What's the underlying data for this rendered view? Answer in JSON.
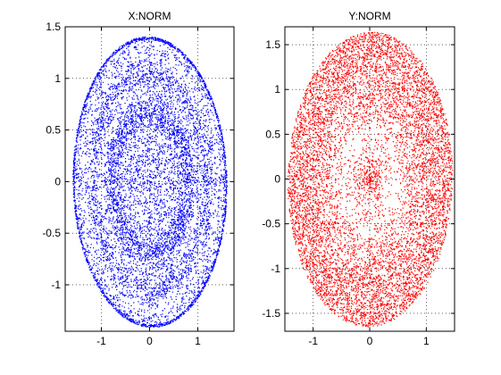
{
  "chart_data": [
    {
      "type": "scatter",
      "title": "X:NORM",
      "xlim": [
        -1.75,
        1.75
      ],
      "ylim": [
        -1.45,
        1.5
      ],
      "xticks": [
        -1,
        0,
        1
      ],
      "yticks": [
        -1,
        -0.5,
        0,
        0.5,
        1,
        1.5
      ],
      "grid": true,
      "marker": "dot",
      "color": "#0000ff",
      "shape": {
        "form": "elliptical rings",
        "center": [
          0,
          0
        ],
        "semi_axis_x": 1.65,
        "semi_axis_y": 1.45,
        "tilt_deg": -6,
        "ring_radii": [
          0.5,
          0.75,
          1.0
        ],
        "approx_points": 9000
      }
    },
    {
      "type": "scatter",
      "title": "Y:NORM",
      "xlim": [
        -1.5,
        1.5
      ],
      "ylim": [
        -1.7,
        1.7
      ],
      "xticks": [
        -1,
        0,
        1
      ],
      "yticks": [
        -1.5,
        -1,
        -0.5,
        0,
        0.5,
        1,
        1.5
      ],
      "grid": true,
      "marker": "dot",
      "color": "#ff0000",
      "shape": {
        "form": "elliptical band",
        "center": [
          0,
          0
        ],
        "semi_axis_x": 1.5,
        "semi_axis_y": 1.7,
        "tilt_deg": -6,
        "inner_hole_radius": 0.3,
        "approx_points": 9000
      }
    }
  ]
}
